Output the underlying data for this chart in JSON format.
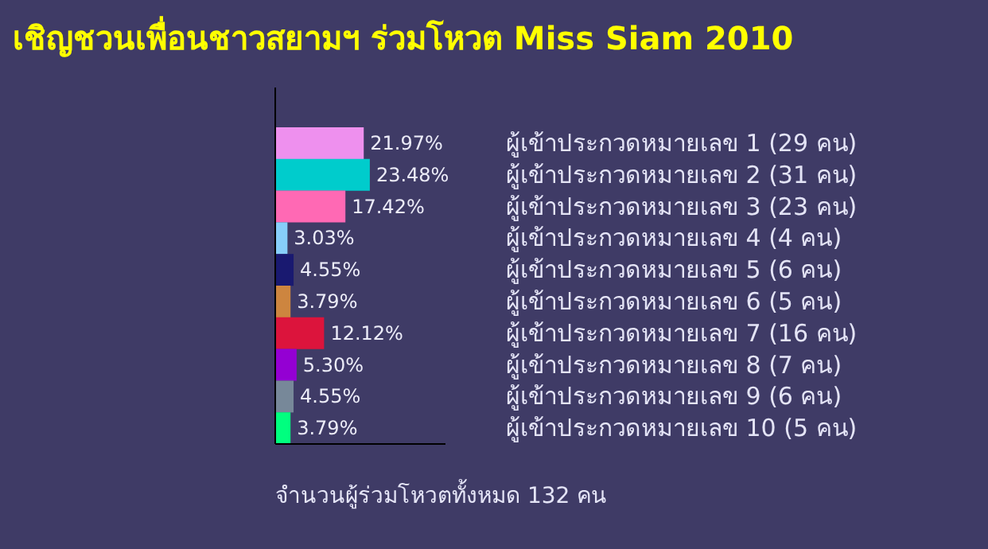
{
  "chart_data": {
    "type": "bar",
    "orientation": "horizontal",
    "title": "เชิญชวนเพื่อนชาวสยามฯ ร่วมโหวต Miss Siam 2010",
    "categories": [
      "ผู้เข้าประกวดหมายเลข 1 (29 คน)",
      "ผู้เข้าประกวดหมายเลข 2 (31 คน)",
      "ผู้เข้าประกวดหมายเลข 3 (23 คน)",
      "ผู้เข้าประกวดหมายเลข 4 (4 คน)",
      "ผู้เข้าประกวดหมายเลข 5 (6 คน)",
      "ผู้เข้าประกวดหมายเลข 6 (5 คน)",
      "ผู้เข้าประกวดหมายเลข 7 (16 คน)",
      "ผู้เข้าประกวดหมายเลข 8 (7 คน)",
      "ผู้เข้าประกวดหมายเลข 9 (6 คน)",
      "ผู้เข้าประกวดหมายเลข 10 (5 คน)"
    ],
    "values": [
      21.97,
      23.48,
      17.42,
      3.03,
      4.55,
      3.79,
      12.12,
      5.3,
      4.55,
      3.79
    ],
    "value_labels": [
      "21.97%",
      "23.48%",
      "17.42%",
      "3.03%",
      "4.55%",
      "3.79%",
      "12.12%",
      "5.30%",
      "4.55%",
      "3.79%"
    ],
    "colors": [
      "#ee90ee",
      "#00cccc",
      "#ff69b4",
      "#87cefa",
      "#191970",
      "#cd853f",
      "#dc143c",
      "#9400d3",
      "#778899",
      "#00ff7f"
    ],
    "annotations": [
      "จำนวนผู้ร่วมโหวตทั้งหมด 132 คน"
    ],
    "grid": false,
    "legend": false
  }
}
